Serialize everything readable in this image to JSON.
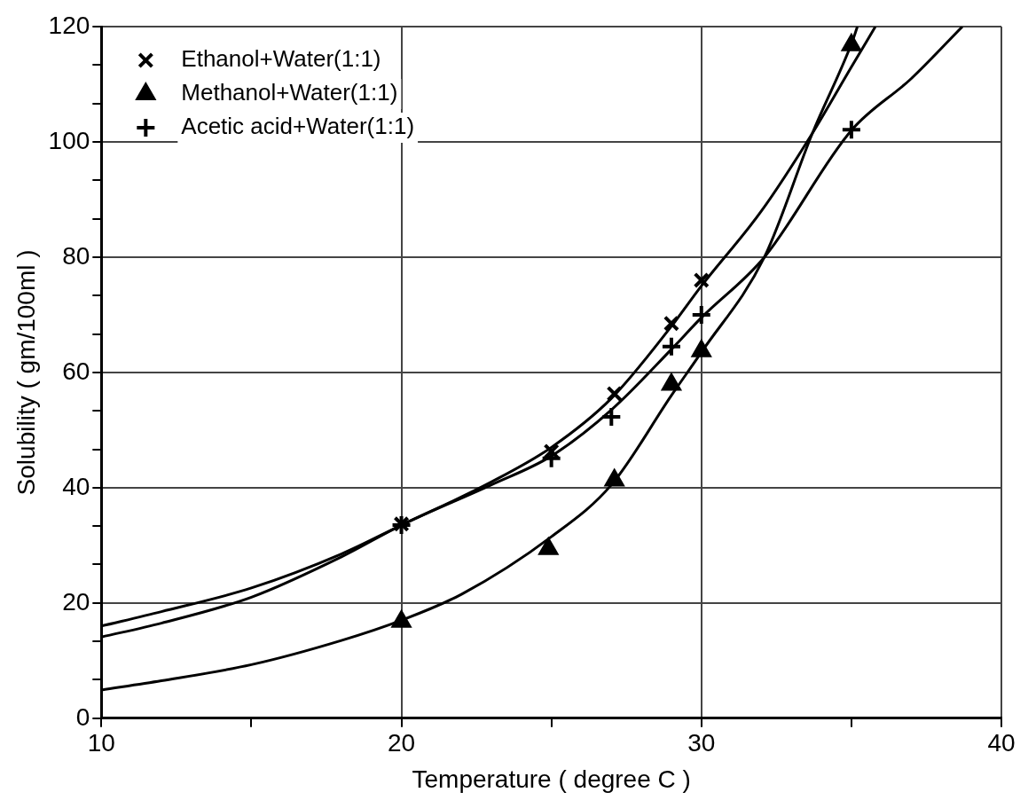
{
  "chart_data": {
    "type": "scatter",
    "xlabel": "Temperature ( degree C )",
    "ylabel": "Solubility ( gm/100ml )",
    "xlim": [
      10,
      40
    ],
    "xticks": [
      10,
      {
        "value": 15,
        "label": null
      },
      20,
      {
        "value": 25,
        "label": null
      },
      30,
      {
        "value": 35,
        "label": null
      },
      40
    ],
    "ylim": [
      0,
      120
    ],
    "yticks": [
      0,
      {
        "value": 6.67,
        "label": null
      },
      {
        "value": 13.33,
        "label": null
      },
      20,
      {
        "value": 26.67,
        "label": null
      },
      {
        "value": 33.33,
        "label": null
      },
      40,
      {
        "value": 46.67,
        "label": null
      },
      {
        "value": 53.33,
        "label": null
      },
      60,
      {
        "value": 66.67,
        "label": null
      },
      {
        "value": 73.33,
        "label": null
      },
      80,
      {
        "value": 86.67,
        "label": null
      },
      {
        "value": 93.33,
        "label": null
      },
      100,
      {
        "value": 106.67,
        "label": null
      },
      {
        "value": 113.33,
        "label": null
      },
      120
    ],
    "grid": true,
    "legend": "top left",
    "series": [
      {
        "name": "Ethanol+Water(1:1)",
        "color": "#000000",
        "marker": "x",
        "x": [
          20,
          25,
          27.1,
          29,
          30
        ],
        "values": [
          33.7,
          46.3,
          56.3,
          68.5,
          76.0
        ]
      },
      {
        "name": "Methanol+Water(1:1)",
        "color": "#000000",
        "marker": "triangle",
        "x": [
          20,
          24.9,
          27.1,
          29,
          30,
          35
        ],
        "values": [
          16.8,
          29.4,
          41.3,
          57.9,
          63.7,
          116.8
        ]
      },
      {
        "name": "Acetic acid+Water(1:1)",
        "color": "#000000",
        "marker": "cross",
        "x": [
          20,
          25,
          27.0,
          29,
          30,
          35
        ],
        "values": [
          33.5,
          45.1,
          52.3,
          64.5,
          70.0,
          102.1
        ]
      },
      {
        "type": "line",
        "color": "#000000",
        "marker": "none",
        "x": [
          10,
          12,
          15,
          18,
          20,
          23,
          25,
          27,
          29,
          30,
          32,
          33.7,
          35,
          35.8
        ],
        "values": [
          16.0,
          18.5,
          22.6,
          28.5,
          33.5,
          41,
          47,
          55.5,
          68,
          75,
          88,
          101.5,
          113,
          120
        ]
      },
      {
        "type": "line",
        "color": "#000000",
        "marker": "none",
        "x": [
          10,
          12,
          15,
          18,
          20,
          22,
          25,
          27,
          29,
          30,
          32.1,
          33.7,
          35,
          35.2
        ],
        "values": [
          4.9,
          6.5,
          9.3,
          13.5,
          17,
          21.5,
          31.5,
          40.5,
          56,
          63.5,
          80,
          101.5,
          117,
          120
        ]
      },
      {
        "type": "line",
        "color": "#000000",
        "marker": "none",
        "x": [
          10,
          12,
          15,
          18,
          20,
          23,
          25,
          27,
          29,
          30,
          32.1,
          35,
          37,
          38.7
        ],
        "values": [
          14.1,
          16.5,
          21,
          28,
          33.5,
          40.5,
          45.5,
          53.5,
          64,
          69.5,
          80,
          102,
          111,
          120
        ]
      }
    ]
  }
}
